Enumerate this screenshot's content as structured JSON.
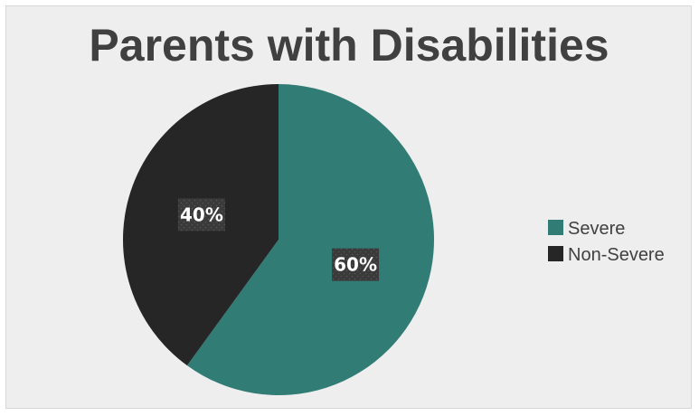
{
  "chart_data": {
    "type": "pie",
    "title": "Parents with Disabilities",
    "categories": [
      "Severe",
      "Non-Severe"
    ],
    "values": [
      60,
      40
    ],
    "labels": [
      "60%",
      "40%"
    ],
    "colors": [
      "#317c74",
      "#262626"
    ],
    "start_angle_deg": 0,
    "direction": "clockwise",
    "legend_position": "right"
  }
}
